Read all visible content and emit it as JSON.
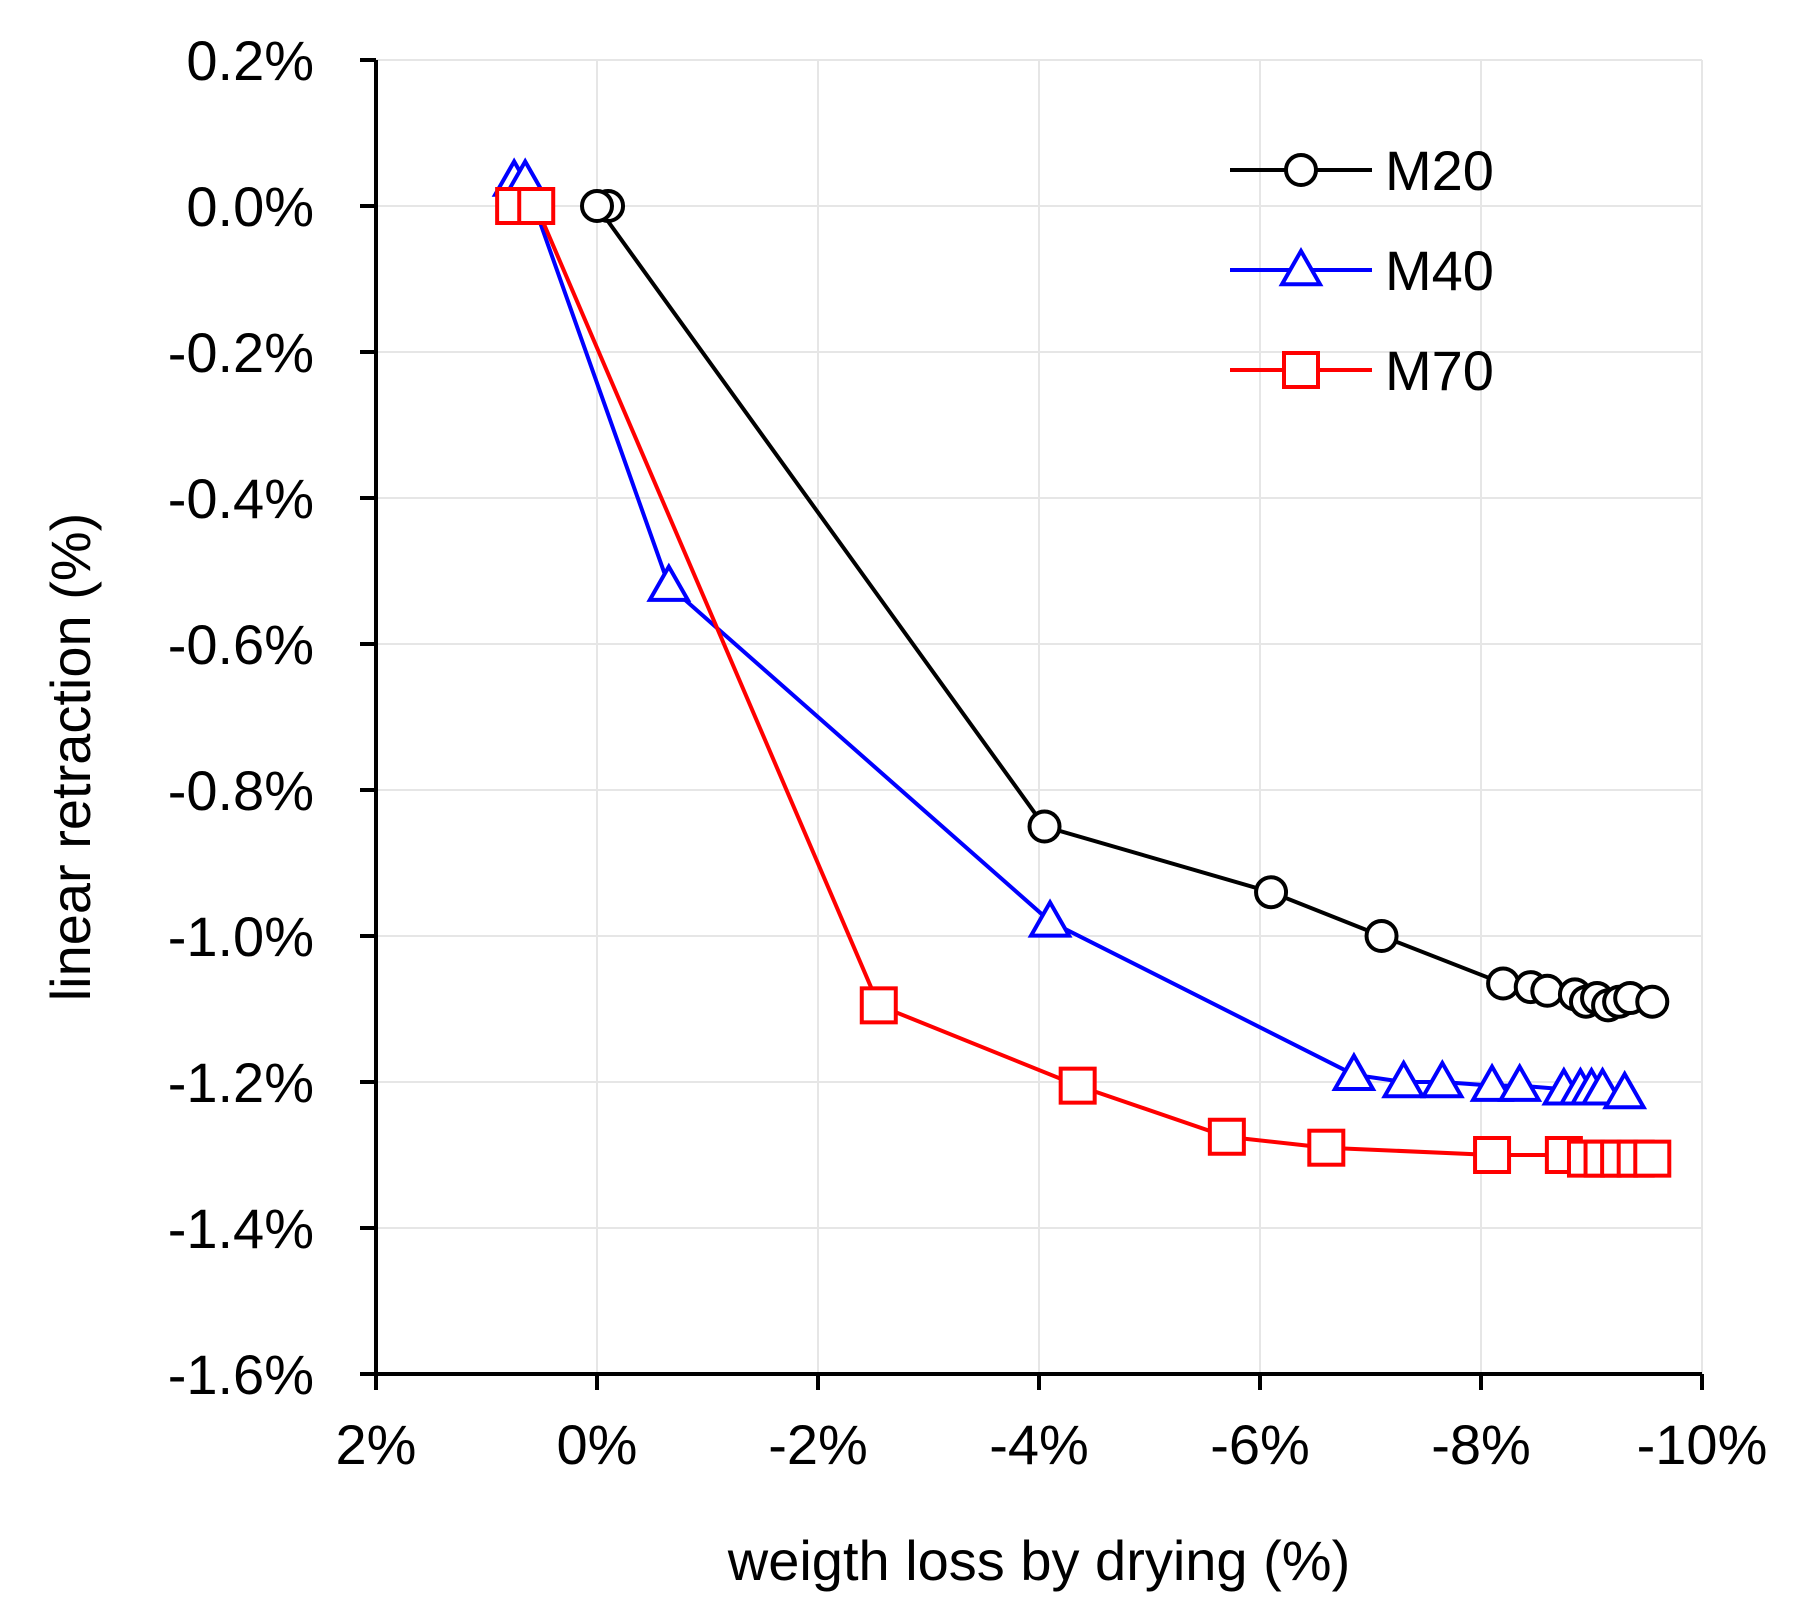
{
  "chart_data": {
    "type": "line",
    "title": "",
    "xlabel": "weigth loss by drying (%)",
    "ylabel": "linear retraction (%)",
    "xlim": [
      2,
      -10
    ],
    "ylim": [
      -1.6,
      0.2
    ],
    "x_reversed": true,
    "grid": true,
    "legend_position": "top-right",
    "x_ticks": [
      2,
      0,
      -2,
      -4,
      -6,
      -8,
      -10
    ],
    "x_tick_labels": [
      "2%",
      "0%",
      "-2%",
      "-4%",
      "-6%",
      "-8%",
      "-10%"
    ],
    "y_ticks": [
      0.2,
      0.0,
      -0.2,
      -0.4,
      -0.6,
      -0.8,
      -1.0,
      -1.2,
      -1.4,
      -1.6
    ],
    "y_tick_labels": [
      "0.2%",
      "0.0%",
      "-0.2%",
      "-0.4%",
      "-0.6%",
      "-0.8%",
      "-1.0%",
      "-1.2%",
      "-1.4%",
      "-1.6%"
    ],
    "series": [
      {
        "name": "M20",
        "color": "#000000",
        "marker": "circle",
        "x": [
          -0.1,
          0.0,
          -4.05,
          -6.1,
          -7.1,
          -8.2,
          -8.45,
          -8.6,
          -8.85,
          -8.95,
          -9.05,
          -9.15,
          -9.25,
          -9.35,
          -9.55
        ],
        "y": [
          0.0,
          0.0,
          -0.85,
          -0.94,
          -1.0,
          -1.065,
          -1.07,
          -1.075,
          -1.08,
          -1.09,
          -1.085,
          -1.095,
          -1.09,
          -1.085,
          -1.09
        ]
      },
      {
        "name": "M40",
        "color": "#0000ff",
        "marker": "triangle",
        "x": [
          0.75,
          0.65,
          -0.65,
          -4.1,
          -6.85,
          -7.3,
          -7.65,
          -8.1,
          -8.35,
          -8.75,
          -8.9,
          -9.0,
          -9.1,
          -9.3
        ],
        "y": [
          0.035,
          0.035,
          -0.52,
          -0.98,
          -1.19,
          -1.2,
          -1.2,
          -1.205,
          -1.205,
          -1.21,
          -1.21,
          -1.21,
          -1.21,
          -1.215
        ]
      },
      {
        "name": "M70",
        "color": "#ff0000",
        "marker": "square",
        "x": [
          0.75,
          0.55,
          -2.55,
          -4.35,
          -5.7,
          -6.6,
          -8.1,
          -8.75,
          -8.95,
          -9.1,
          -9.25,
          -9.4,
          -9.55
        ],
        "y": [
          0.0,
          0.0,
          -1.095,
          -1.205,
          -1.275,
          -1.29,
          -1.3,
          -1.3,
          -1.305,
          -1.305,
          -1.305,
          -1.305,
          -1.305
        ]
      }
    ]
  }
}
